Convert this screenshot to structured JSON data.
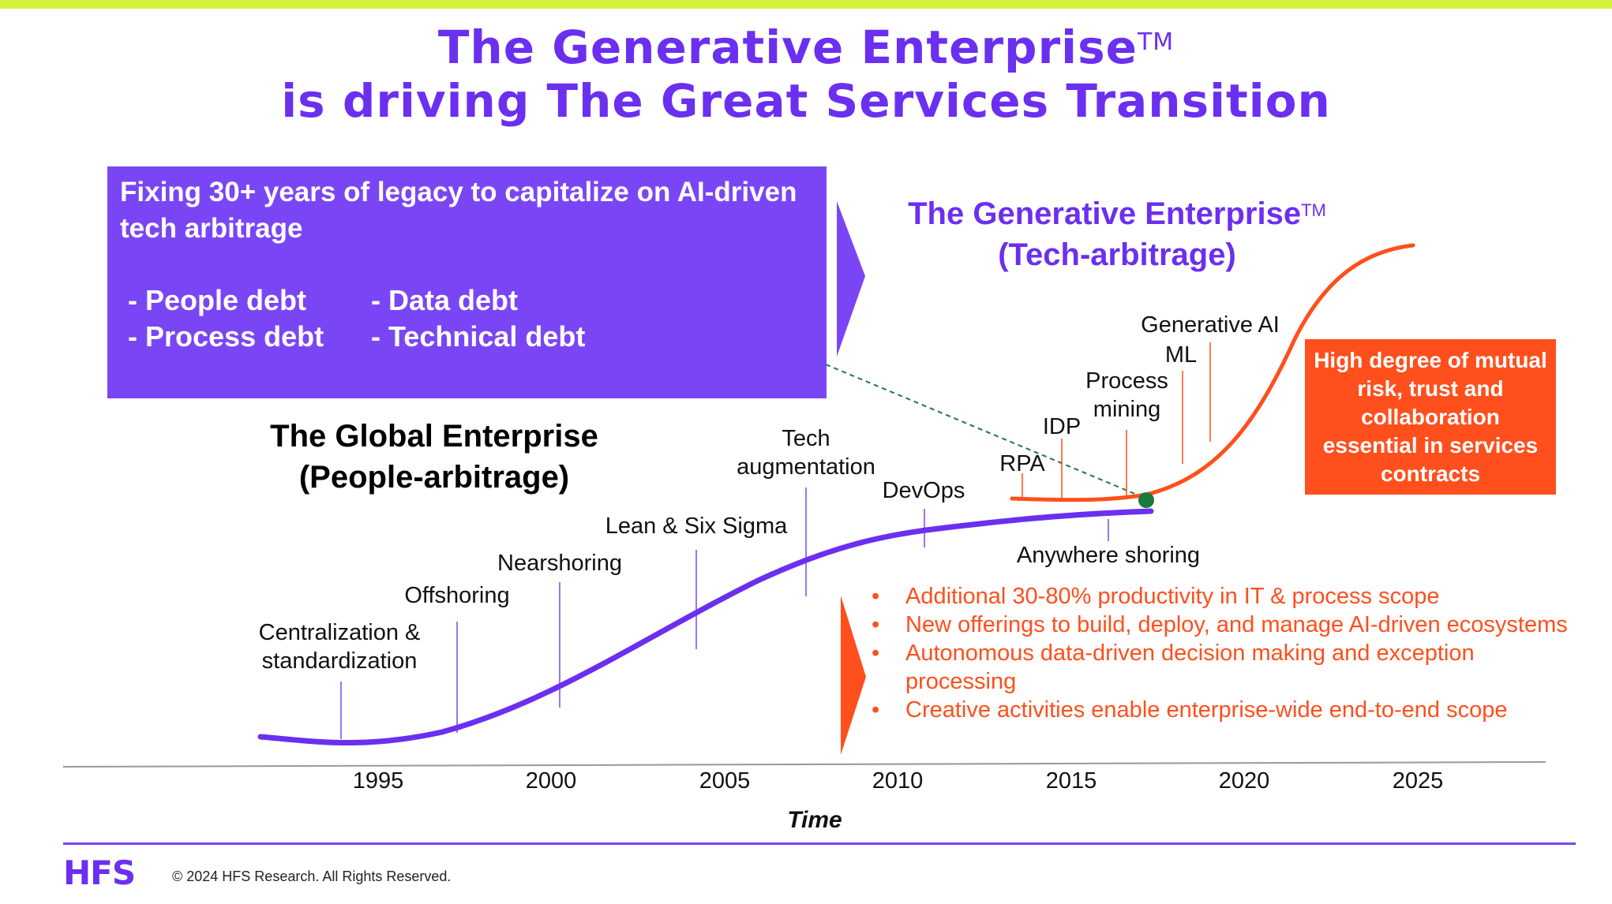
{
  "header": {
    "title_line1": "The Generative Enterprise",
    "title_line1_tm": "TM",
    "title_line2": "is driving The Great Services Transition"
  },
  "legacy_box": {
    "heading": "Fixing 30+ years of legacy to capitalize on AI-driven tech arbitrage",
    "debts": [
      "- People debt",
      "- Data debt",
      "- Process debt",
      "- Technical debt"
    ]
  },
  "generative_enterprise": {
    "title": "The Generative Enterprise",
    "tm": "TM",
    "subtitle": "(Tech-arbitrage)"
  },
  "global_enterprise": {
    "title": "The Global Enterprise",
    "subtitle": "(People-arbitrage)"
  },
  "risk_box": {
    "text": "High degree of mutual risk, trust and collaboration essential in services contracts"
  },
  "global_milestones": [
    {
      "label": "Centralization &\nstandardization"
    },
    {
      "label": "Offshoring"
    },
    {
      "label": "Nearshoring"
    },
    {
      "label": "Lean & Six Sigma"
    },
    {
      "label": "Tech\naugmentation"
    },
    {
      "label": "DevOps"
    },
    {
      "label": "Anywhere shoring"
    }
  ],
  "generative_milestones": [
    {
      "label": "RPA"
    },
    {
      "label": "IDP"
    },
    {
      "label": "Process\nmining"
    },
    {
      "label": "ML"
    },
    {
      "label": "Generative AI"
    }
  ],
  "axis": {
    "years": [
      "1995",
      "2000",
      "2005",
      "2010",
      "2015",
      "2020",
      "2025"
    ],
    "xlabel": "Time"
  },
  "outcomes": [
    "Additional 30-80% productivity in IT & process scope",
    "New offerings to build, deploy, and manage AI-driven ecosystems",
    "Autonomous data-driven decision making and exception processing",
    "Creative activities enable enterprise-wide end-to-end scope"
  ],
  "footer": {
    "logo": "HFS",
    "copyright": "© 2024 HFS Research. All Rights Reserved."
  },
  "colors": {
    "purple": "#6b2ff0",
    "purple_box": "#7a46f5",
    "orange": "#ff4f1c",
    "accent_bar": "#d6f23f",
    "junction_dot": "#1a7a3c"
  }
}
